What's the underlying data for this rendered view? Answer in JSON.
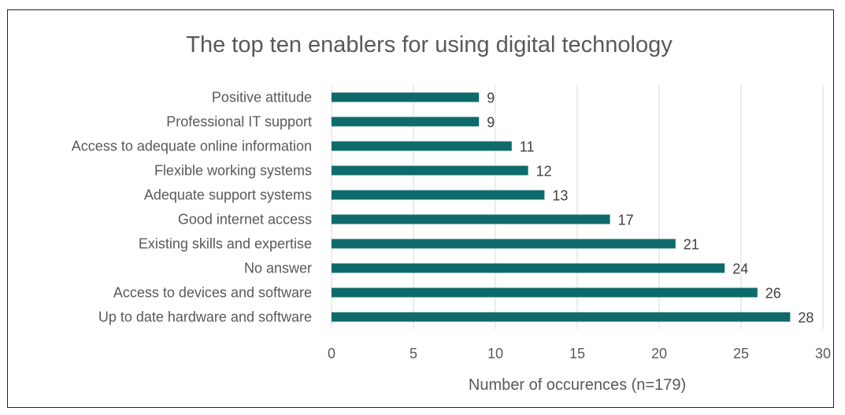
{
  "chart_data": {
    "type": "bar",
    "orientation": "horizontal",
    "title": "The top ten enablers for using digital technology",
    "xlabel": "Number of occurences (n=179)",
    "ylabel": "",
    "categories": [
      "Positive attitude",
      "Professional IT support",
      "Access to adequate online information",
      "Flexible working systems",
      "Adequate support systems",
      "Good internet access",
      "Existing skills and expertise",
      "No answer",
      "Access to devices and software",
      "Up to date hardware and software"
    ],
    "values": [
      9,
      9,
      11,
      12,
      13,
      17,
      21,
      24,
      26,
      28
    ],
    "xlim": [
      0,
      30
    ],
    "xticks": [
      "0",
      "5",
      "10",
      "15",
      "20",
      "25",
      "30"
    ],
    "grid": true,
    "legend": "none",
    "bar_color": "#0f6b6b"
  }
}
